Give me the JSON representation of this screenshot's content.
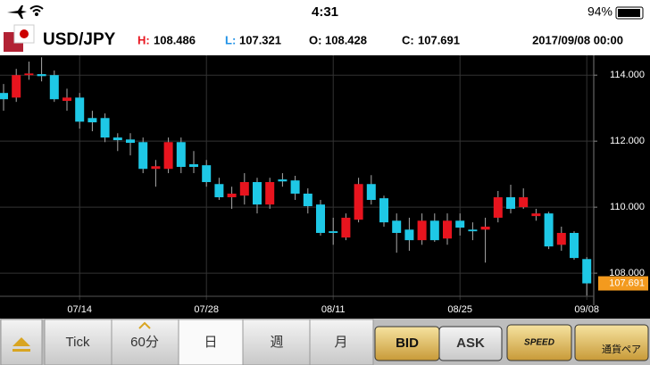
{
  "status_bar": {
    "time": "4:31",
    "battery": "94%"
  },
  "header": {
    "pair": "USD/JPY",
    "high_label": "H:",
    "low_label": "L:",
    "open_label": "O:",
    "close_label": "C:",
    "datetime": "2017/09/08 00:00"
  },
  "toolbar": {
    "tick": "Tick",
    "interval": "60分",
    "day": "日",
    "week": "週",
    "month": "月",
    "bid": "BID",
    "ask": "ASK",
    "speed": "SPEED",
    "pair": "通貨ペア"
  },
  "chart_data": {
    "type": "candlestick",
    "categories": [
      null,
      null,
      null,
      null,
      null,
      null,
      "07/14",
      null,
      null,
      null,
      null,
      null,
      null,
      null,
      null,
      null,
      "07/28",
      null,
      null,
      null,
      null,
      null,
      null,
      null,
      null,
      null,
      "08/11",
      null,
      null,
      null,
      null,
      null,
      null,
      null,
      null,
      null,
      "08/25",
      null,
      null,
      null,
      null,
      null,
      null,
      null,
      null,
      null,
      "09/08"
    ],
    "open": [
      113.46,
      113.32,
      114.0,
      114.03,
      114.0,
      113.22,
      113.32,
      112.7,
      112.7,
      112.11,
      112.05,
      111.97,
      111.16,
      111.16,
      111.97,
      111.3,
      111.27,
      110.7,
      110.3,
      110.35,
      110.76,
      110.08,
      110.84,
      110.81,
      110.41,
      110.08,
      109.27,
      109.08,
      109.62,
      110.7,
      110.27,
      109.59,
      109.32,
      109.0,
      109.59,
      109.05,
      109.59,
      109.32,
      109.32,
      109.68,
      110.3,
      110.0,
      109.73,
      109.81,
      108.86,
      109.22,
      108.428
    ],
    "high": [
      113.73,
      114.19,
      114.41,
      114.54,
      114.14,
      113.59,
      113.46,
      112.92,
      112.84,
      112.24,
      112.24,
      112.11,
      111.43,
      112.11,
      112.11,
      111.7,
      111.43,
      110.89,
      110.62,
      111.03,
      110.89,
      110.89,
      111.03,
      110.95,
      110.57,
      110.22,
      109.68,
      109.81,
      110.89,
      110.97,
      110.35,
      109.81,
      109.68,
      109.81,
      109.81,
      109.81,
      109.81,
      109.54,
      109.68,
      110.49,
      110.68,
      110.57,
      109.95,
      109.86,
      109.41,
      109.27,
      108.486
    ],
    "low": [
      112.92,
      113.19,
      113.86,
      113.81,
      113.19,
      112.92,
      112.38,
      112.3,
      111.97,
      111.7,
      111.57,
      111.03,
      110.62,
      111.03,
      111.03,
      111.03,
      110.62,
      110.22,
      109.95,
      110.08,
      109.81,
      109.95,
      110.62,
      110.22,
      109.81,
      109.14,
      108.86,
      109.0,
      109.54,
      110.08,
      109.41,
      108.62,
      108.68,
      108.86,
      108.95,
      108.86,
      109.14,
      109.0,
      108.32,
      109.54,
      109.81,
      109.95,
      109.59,
      108.73,
      108.68,
      108.41,
      107.321
    ],
    "close": [
      113.27,
      114.0,
      114.05,
      113.97,
      113.27,
      113.32,
      112.59,
      112.57,
      112.11,
      112.03,
      111.95,
      111.16,
      111.24,
      111.97,
      111.22,
      111.22,
      110.76,
      110.3,
      110.41,
      110.76,
      110.08,
      110.76,
      110.78,
      110.41,
      110.03,
      109.22,
      109.22,
      109.68,
      110.7,
      110.22,
      109.54,
      109.22,
      109.0,
      109.59,
      109.0,
      109.59,
      109.38,
      109.27,
      109.41,
      110.3,
      109.95,
      110.3,
      109.81,
      108.81,
      109.22,
      108.46,
      107.691
    ],
    "up_color": "#e8141e",
    "down_color": "#1ec8e6",
    "ylim": [
      107.3,
      114.6
    ],
    "yticks": [
      {
        "value": 108,
        "label": "108.000"
      },
      {
        "value": 110,
        "label": "110.000"
      },
      {
        "value": 112,
        "label": "112.000"
      },
      {
        "value": 114,
        "label": "114.000"
      }
    ],
    "grid": true
  }
}
